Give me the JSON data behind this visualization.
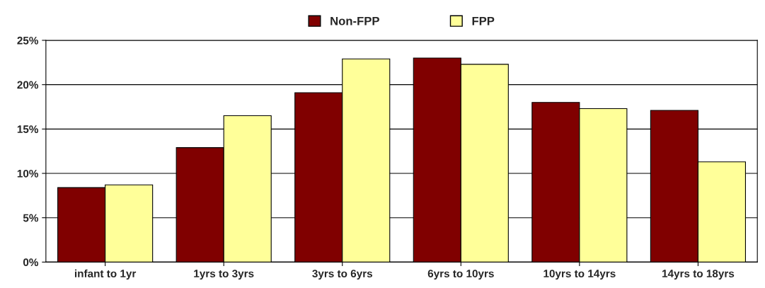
{
  "chart_data": {
    "type": "bar",
    "categories": [
      "infant to 1yr",
      "1yrs to 3yrs",
      "3yrs to 6yrs",
      "6yrs to 10yrs",
      "10yrs to 14yrs",
      "14yrs to 18yrs"
    ],
    "series": [
      {
        "name": "Non-FPP",
        "color": "#800000",
        "values": [
          8.4,
          12.9,
          19.1,
          23.0,
          18.0,
          17.1
        ]
      },
      {
        "name": "FPP",
        "color": "#ffff99",
        "values": [
          8.7,
          16.5,
          22.9,
          22.3,
          17.3,
          11.3
        ]
      }
    ],
    "ylim": [
      0,
      25
    ],
    "yticks": [
      {
        "value": 0,
        "label": "0%"
      },
      {
        "value": 5,
        "label": "5%"
      },
      {
        "value": 10,
        "label": "10%"
      },
      {
        "value": 15,
        "label": "15%"
      },
      {
        "value": 20,
        "label": "20%"
      },
      {
        "value": 25,
        "label": "25%"
      }
    ],
    "grid": "y",
    "legend": "top"
  }
}
